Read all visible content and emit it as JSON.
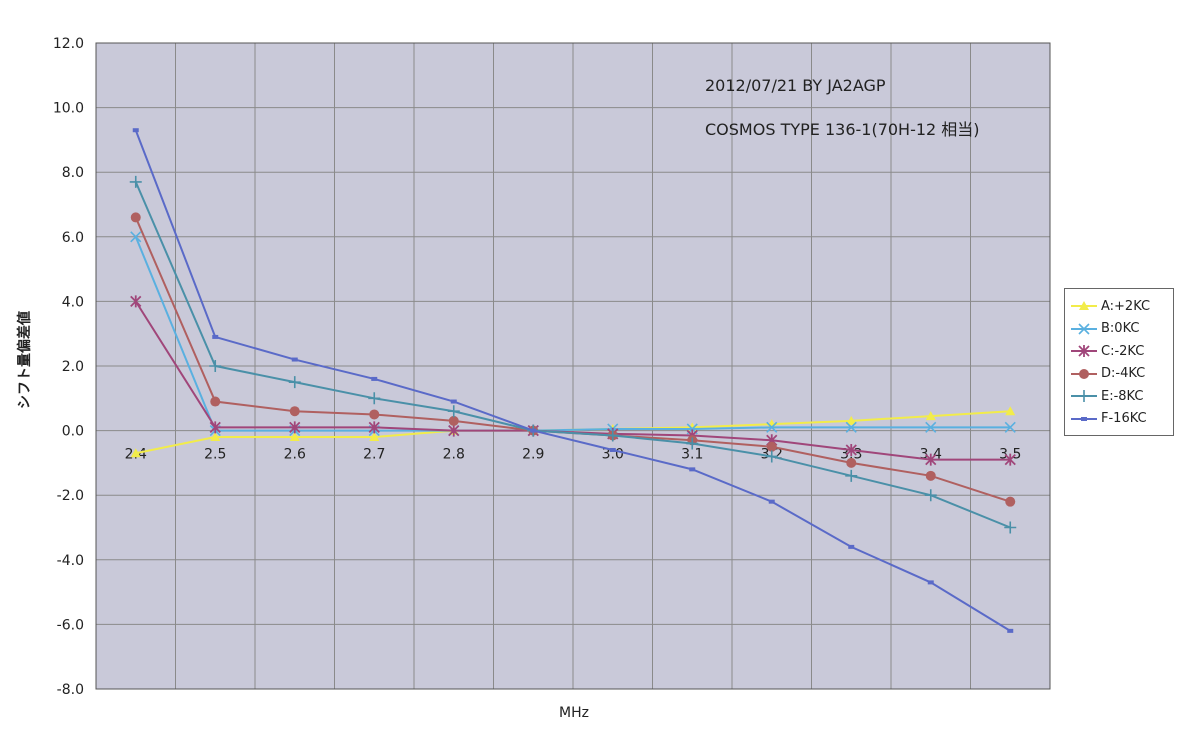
{
  "chart_data": {
    "type": "line",
    "title": "",
    "annotations": [
      "2012/07/21 BY JA2AGP",
      "COSMOS TYPE 136-1(70H-12 相当)"
    ],
    "xlabel": "MHz",
    "ylabel": "シフト量偏差値",
    "categories": [
      "2.4",
      "2.5",
      "2.6",
      "2.7",
      "2.8",
      "2.9",
      "3.0",
      "3.1",
      "3.2",
      "3.3",
      "3.4",
      "3.5"
    ],
    "ylim": [
      -8.0,
      12.0
    ],
    "yticks": [
      "12.0",
      "10.0",
      "8.0",
      "6.0",
      "4.0",
      "2.0",
      "0.0",
      "-2.0",
      "-4.0",
      "-6.0",
      "-8.0"
    ],
    "grid": true,
    "legend_position": "right",
    "series": [
      {
        "name": "A:+2KC",
        "color": "#f2ec4a",
        "marker": "triangle",
        "values": [
          -0.7,
          -0.2,
          -0.2,
          -0.2,
          0.0,
          0.0,
          0.05,
          0.1,
          0.2,
          0.3,
          0.45,
          0.6
        ]
      },
      {
        "name": "B:0KC",
        "color": "#5ab0e0",
        "marker": "x",
        "values": [
          6.0,
          0.0,
          0.0,
          0.0,
          0.0,
          0.0,
          0.05,
          0.05,
          0.1,
          0.1,
          0.1,
          0.1
        ]
      },
      {
        "name": "C:-2KC",
        "color": "#a0467a",
        "marker": "star",
        "values": [
          4.0,
          0.1,
          0.1,
          0.1,
          0.0,
          0.0,
          -0.1,
          -0.15,
          -0.3,
          -0.6,
          -0.9,
          -0.9
        ]
      },
      {
        "name": "D:-4KC",
        "color": "#b06060",
        "marker": "circle",
        "values": [
          6.6,
          0.9,
          0.6,
          0.5,
          0.3,
          0.0,
          -0.15,
          -0.3,
          -0.5,
          -1.0,
          -1.4,
          -2.2
        ]
      },
      {
        "name": "E:-8KC",
        "color": "#4a90a8",
        "marker": "plus",
        "values": [
          7.7,
          2.0,
          1.5,
          1.0,
          0.6,
          0.0,
          -0.15,
          -0.4,
          -0.8,
          -1.4,
          -2.0,
          -3.0
        ]
      },
      {
        "name": "F-16KC",
        "color": "#5a6ac8",
        "marker": "dash",
        "values": [
          9.3,
          2.9,
          2.2,
          1.6,
          0.9,
          0.0,
          -0.6,
          -1.2,
          -2.2,
          -3.6,
          -4.7,
          -6.2
        ]
      }
    ]
  }
}
